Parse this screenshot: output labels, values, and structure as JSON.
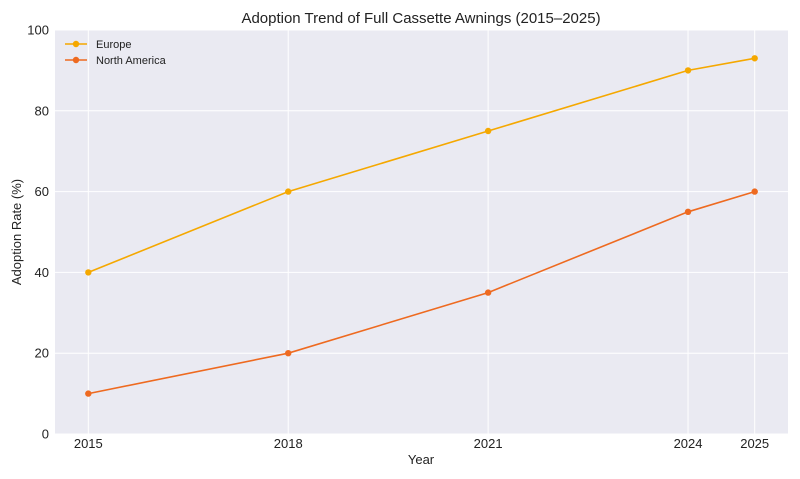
{
  "chart_data": {
    "type": "line",
    "title": "Adoption Trend of Full Cassette Awnings (2015–2025)",
    "xlabel": "Year",
    "ylabel": "Adoption Rate (%)",
    "x": [
      2015,
      2018,
      2021,
      2024,
      2025
    ],
    "xlim": [
      2014.5,
      2025.5
    ],
    "ylim": [
      0,
      100
    ],
    "yticks": [
      0,
      20,
      40,
      60,
      80,
      100
    ],
    "grid": true,
    "legend_position": "top-left",
    "series": [
      {
        "name": "Europe",
        "color": "#f5a800",
        "values": [
          40,
          60,
          75,
          90,
          93
        ]
      },
      {
        "name": "North America",
        "color": "#ee6a20",
        "values": [
          10,
          20,
          35,
          55,
          60
        ]
      }
    ]
  }
}
